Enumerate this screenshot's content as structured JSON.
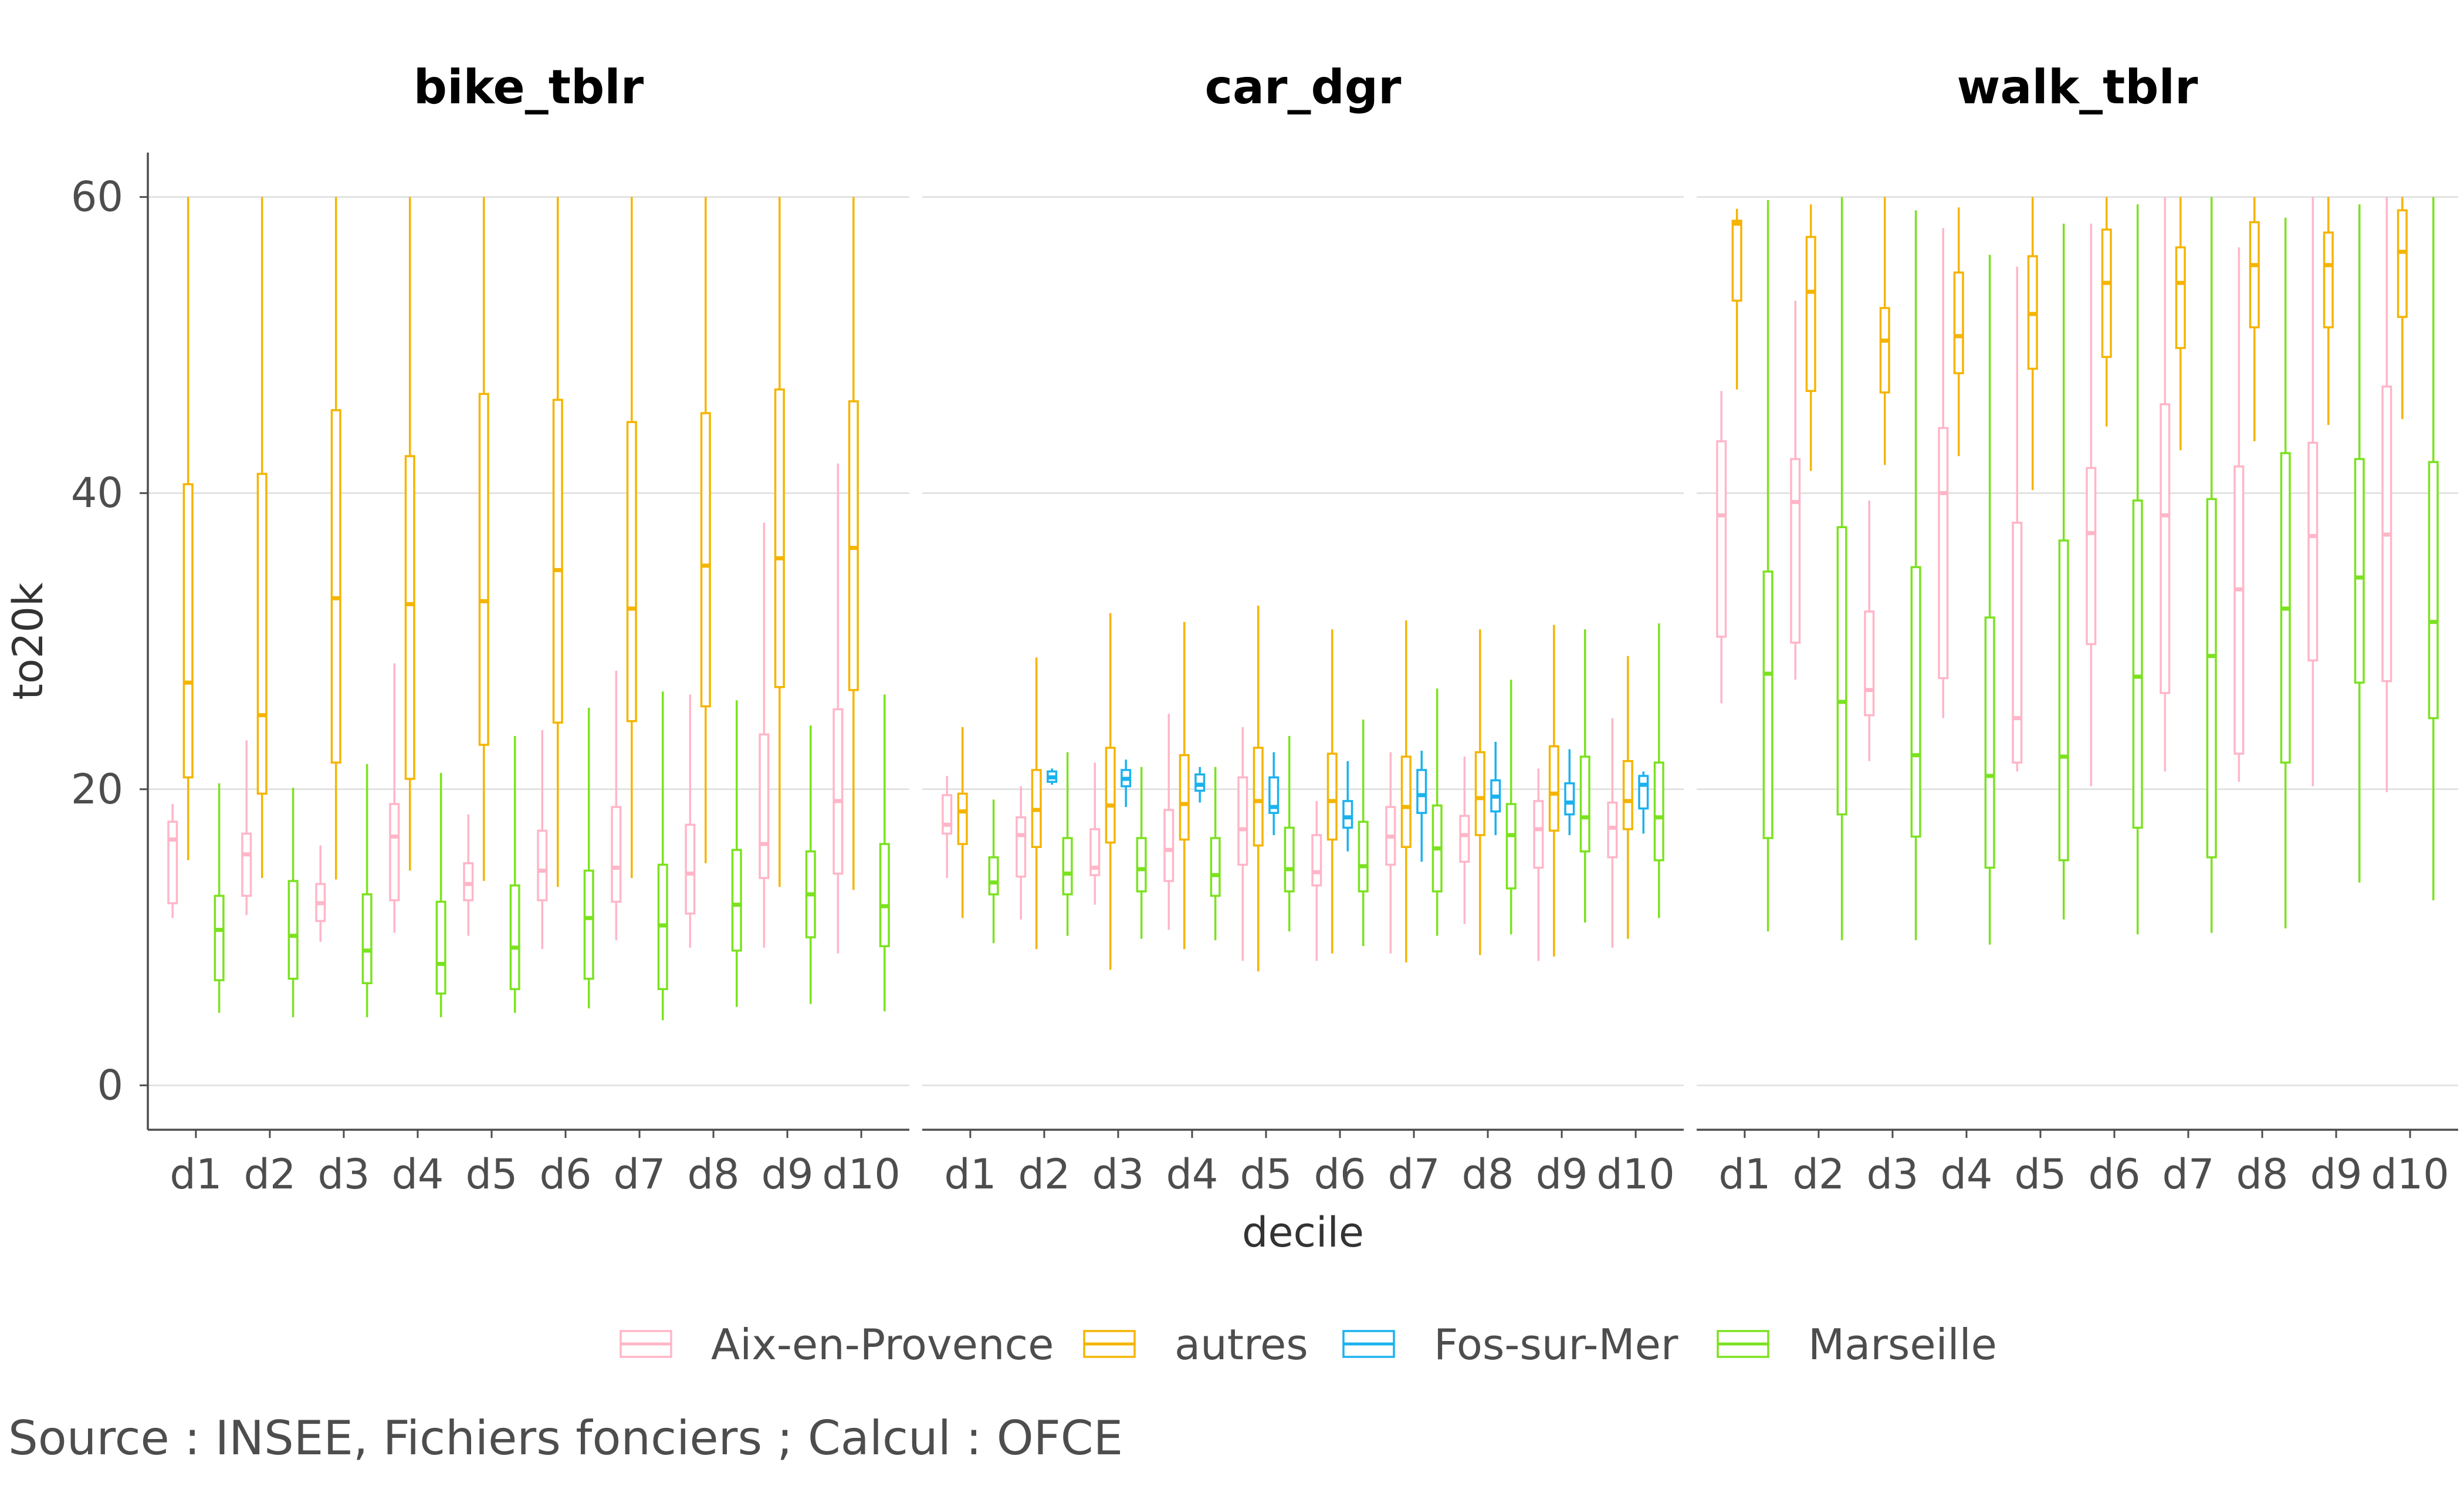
{
  "chart_data": {
    "type": "boxplot",
    "ylabel": "to20k",
    "xlabel": "decile",
    "ylim": [
      -3,
      63
    ],
    "yticks": [
      0,
      20,
      40,
      60
    ],
    "grid": "horizontal major",
    "legend_position": "bottom",
    "caption": "Source : INSEE, Fichiers fonciers ; Calcul : OFCE",
    "categories": [
      "d1",
      "d2",
      "d3",
      "d4",
      "d5",
      "d6",
      "d7",
      "d8",
      "d9",
      "d10"
    ],
    "groups": [
      {
        "name": "Aix-en-Provence",
        "color": "#ffb6c8"
      },
      {
        "name": "autres",
        "color": "#f5b400"
      },
      {
        "name": "Fos-sur-Mer",
        "color": "#1ab2ee"
      },
      {
        "name": "Marseille",
        "color": "#7be21f"
      }
    ],
    "panels": [
      {
        "title": "bike_tblr",
        "series": [
          {
            "name": "Aix-en-Provence",
            "boxes": [
              [
                11.3,
                12.3,
                16.6,
                17.8,
                19
              ],
              [
                11.5,
                12.8,
                15.6,
                17,
                23.3
              ],
              [
                9.7,
                11.1,
                12.3,
                13.6,
                16.2
              ],
              [
                10.3,
                12.5,
                16.8,
                19,
                28.5
              ],
              [
                10.1,
                12.5,
                13.6,
                15,
                18.3
              ],
              [
                9.2,
                12.5,
                14.5,
                17.2,
                24
              ],
              [
                9.8,
                12.4,
                14.7,
                18.8,
                28
              ],
              [
                9.3,
                11.6,
                14.3,
                17.6,
                26.4
              ],
              [
                9.3,
                14,
                16.3,
                23.7,
                38
              ],
              [
                8.9,
                14.3,
                19.2,
                25.4,
                42
              ]
            ]
          },
          {
            "name": "autres",
            "boxes": [
              [
                15.2,
                20.8,
                27.2,
                40.6,
                60
              ],
              [
                14,
                19.7,
                25,
                41.3,
                60
              ],
              [
                13.9,
                21.8,
                32.9,
                45.6,
                60
              ],
              [
                14.5,
                20.7,
                32.5,
                42.5,
                60
              ],
              [
                13.8,
                23,
                32.7,
                46.7,
                60
              ],
              [
                13.4,
                24.5,
                34.8,
                46.3,
                60
              ],
              [
                14,
                24.6,
                32.2,
                44.8,
                60
              ],
              [
                15,
                25.6,
                35.1,
                45.4,
                60
              ],
              [
                13.4,
                26.9,
                35.6,
                47,
                60
              ],
              [
                13.2,
                26.7,
                36.3,
                46.2,
                60
              ]
            ]
          },
          {
            "name": "Marseille",
            "boxes": [
              [
                4.9,
                7.1,
                10.5,
                12.8,
                20.4
              ],
              [
                4.6,
                7.2,
                10.1,
                13.8,
                20.1
              ],
              [
                4.6,
                6.9,
                9.1,
                12.9,
                21.7
              ],
              [
                4.6,
                6.2,
                8.2,
                12.4,
                21.1
              ],
              [
                4.9,
                6.5,
                9.3,
                13.5,
                23.6
              ],
              [
                5.2,
                7.2,
                11.3,
                14.5,
                25.5
              ],
              [
                4.4,
                6.5,
                10.8,
                14.9,
                26.6
              ],
              [
                5.3,
                9.1,
                12.2,
                15.9,
                26
              ],
              [
                5.5,
                10,
                12.9,
                15.8,
                24.3
              ],
              [
                5,
                9.4,
                12.1,
                16.3,
                26.4
              ]
            ]
          }
        ]
      },
      {
        "title": "car_dgr",
        "series": [
          {
            "name": "Aix-en-Provence",
            "boxes": [
              [
                14,
                17,
                17.6,
                19.6,
                20.9
              ],
              [
                11.2,
                14.1,
                16.9,
                18.1,
                20.2
              ],
              [
                12.2,
                14.2,
                14.7,
                17.3,
                21.8
              ],
              [
                10.5,
                13.8,
                15.9,
                18.6,
                25.1
              ],
              [
                8.4,
                14.9,
                17.3,
                20.8,
                24.2
              ],
              [
                8.4,
                13.5,
                14.4,
                16.9,
                19.2
              ],
              [
                8.9,
                14.9,
                16.8,
                18.8,
                22.5
              ],
              [
                10.9,
                15.1,
                16.9,
                18.2,
                22.2
              ],
              [
                8.4,
                14.7,
                17.3,
                19.2,
                21.4
              ],
              [
                9.3,
                15.4,
                17.4,
                19.1,
                24.8
              ]
            ]
          },
          {
            "name": "autres",
            "boxes": [
              [
                11.3,
                16.3,
                18.5,
                19.7,
                24.2
              ],
              [
                9.2,
                16.1,
                18.6,
                21.3,
                28.9
              ],
              [
                7.8,
                16.4,
                18.9,
                22.8,
                31.9
              ],
              [
                9.2,
                16.6,
                19,
                22.3,
                31.3
              ],
              [
                7.7,
                16.2,
                19.2,
                22.8,
                32.4
              ],
              [
                8.9,
                16.6,
                19.2,
                22.4,
                30.8
              ],
              [
                8.3,
                16.1,
                18.8,
                22.2,
                31.4
              ],
              [
                8.8,
                16.9,
                19.4,
                22.5,
                30.8
              ],
              [
                8.7,
                17.2,
                19.7,
                22.9,
                31.1
              ],
              [
                9.9,
                17.3,
                19.2,
                21.9,
                29
              ]
            ]
          },
          {
            "name": "Fos-sur-Mer",
            "boxes": [
              null,
              [
                20.3,
                20.5,
                20.8,
                21.2,
                21.4
              ],
              [
                18.8,
                20.2,
                20.7,
                21.3,
                22
              ],
              [
                19.1,
                19.9,
                20.3,
                21,
                21.5
              ],
              [
                16.9,
                18.4,
                18.8,
                20.8,
                22.5
              ],
              [
                15.8,
                17.4,
                18.1,
                19.2,
                21.9
              ],
              [
                15.1,
                18.4,
                19.6,
                21.3,
                22.6
              ],
              [
                16.9,
                18.5,
                19.5,
                20.6,
                23.2
              ],
              [
                16.9,
                18.3,
                19.1,
                20.4,
                22.7
              ],
              [
                17,
                18.7,
                20.3,
                20.9,
                21.2
              ]
            ]
          },
          {
            "name": "Marseille",
            "boxes": [
              [
                9.6,
                12.9,
                13.7,
                15.4,
                19.3
              ],
              [
                10.1,
                12.9,
                14.3,
                16.7,
                22.5
              ],
              [
                9.9,
                13.1,
                14.6,
                16.7,
                21.5
              ],
              [
                9.8,
                12.8,
                14.2,
                16.7,
                21.5
              ],
              [
                10.4,
                13.1,
                14.6,
                17.4,
                23.6
              ],
              [
                9.4,
                13.1,
                14.8,
                17.8,
                24.7
              ],
              [
                10.1,
                13.1,
                16,
                18.9,
                26.8
              ],
              [
                10.2,
                13.3,
                16.9,
                19,
                27.4
              ],
              [
                11,
                15.8,
                18.1,
                22.2,
                30.8
              ],
              [
                11.3,
                15.2,
                18.1,
                21.8,
                31.2
              ]
            ]
          }
        ]
      },
      {
        "title": "walk_tblr",
        "series": [
          {
            "name": "Aix-en-Provence",
            "boxes": [
              [
                25.8,
                30.3,
                38.5,
                43.5,
                46.9
              ],
              [
                27.4,
                29.9,
                39.4,
                42.3,
                53
              ],
              [
                21.9,
                25,
                26.7,
                32,
                39.5
              ],
              [
                24.8,
                27.5,
                40,
                44.4,
                57.9
              ],
              [
                21.2,
                21.8,
                24.8,
                38,
                55.3
              ],
              [
                20.2,
                29.8,
                37.3,
                41.7,
                58.2
              ],
              [
                21.2,
                26.5,
                38.5,
                46,
                60
              ],
              [
                20.5,
                22.4,
                33.5,
                41.8,
                56.6
              ],
              [
                20.2,
                28.7,
                37.1,
                43.4,
                60
              ],
              [
                19.8,
                27.3,
                37.2,
                47.2,
                60
              ]
            ]
          },
          {
            "name": "autres",
            "boxes": [
              [
                47,
                53,
                58.2,
                58.4,
                59.2
              ],
              [
                41.5,
                46.9,
                53.6,
                57.3,
                59.5
              ],
              [
                41.9,
                46.8,
                50.3,
                52.5,
                60
              ],
              [
                42.5,
                48.1,
                50.6,
                54.9,
                59.3
              ],
              [
                40.2,
                48.4,
                52.1,
                56,
                60
              ],
              [
                44.5,
                49.2,
                54.2,
                57.8,
                60
              ],
              [
                42.9,
                49.8,
                54.2,
                56.6,
                60
              ],
              [
                43.5,
                51.2,
                55.4,
                58.3,
                60
              ],
              [
                44.6,
                51.2,
                55.4,
                57.6,
                60
              ],
              [
                45,
                51.9,
                56.3,
                59.1,
                60
              ]
            ]
          },
          {
            "name": "Marseille",
            "boxes": [
              [
                10.4,
                16.7,
                27.8,
                34.7,
                59.8
              ],
              [
                9.8,
                18.3,
                25.9,
                37.7,
                60
              ],
              [
                9.8,
                16.8,
                22.3,
                35,
                59.1
              ],
              [
                9.5,
                14.7,
                20.9,
                31.6,
                56.1
              ],
              [
                11.2,
                15.2,
                22.2,
                36.8,
                58.2
              ],
              [
                10.2,
                17.4,
                27.6,
                39.5,
                59.5
              ],
              [
                10.3,
                15.4,
                29,
                39.6,
                60
              ],
              [
                10.6,
                21.8,
                32.2,
                42.7,
                58.6
              ],
              [
                13.7,
                27.2,
                34.3,
                42.3,
                59.5
              ],
              [
                12.5,
                24.8,
                31.3,
                42.1,
                60
              ]
            ]
          }
        ]
      }
    ]
  }
}
